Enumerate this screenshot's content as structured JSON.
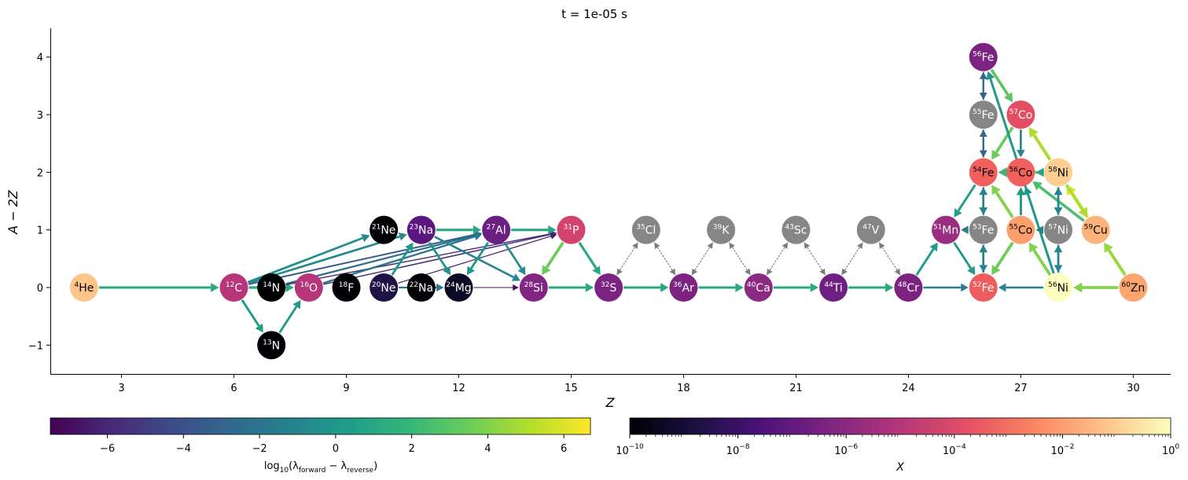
{
  "chart_data": {
    "type": "network",
    "title": "t = 1e-05 s",
    "xlabel": "Z",
    "ylabel": "A − 2Z",
    "xlim": [
      1.1,
      31.0
    ],
    "ylim": [
      -1.5,
      4.5
    ],
    "xticks": [
      3,
      6,
      9,
      12,
      15,
      18,
      21,
      24,
      27,
      30
    ],
    "yticks": [
      -1,
      0,
      1,
      2,
      3,
      4
    ],
    "grid": false,
    "nodes": [
      {
        "id": "he4",
        "a": "4",
        "el": "He",
        "z": 2,
        "n": 0,
        "color": "#fdc58b",
        "text": "#000000"
      },
      {
        "id": "c12",
        "a": "12",
        "el": "C",
        "z": 6,
        "n": 0,
        "color": "#b5367a",
        "text": "#ffffff"
      },
      {
        "id": "n13",
        "a": "13",
        "el": "N",
        "z": 7,
        "n": -1,
        "color": "#000004",
        "text": "#ffffff"
      },
      {
        "id": "n14",
        "a": "14",
        "el": "N",
        "z": 7,
        "n": 0,
        "color": "#000004",
        "text": "#ffffff"
      },
      {
        "id": "o16",
        "a": "16",
        "el": "O",
        "z": 8,
        "n": 0,
        "color": "#b5367a",
        "text": "#ffffff"
      },
      {
        "id": "f18",
        "a": "18",
        "el": "F",
        "z": 9,
        "n": 0,
        "color": "#000004",
        "text": "#ffffff"
      },
      {
        "id": "ne20",
        "a": "20",
        "el": "Ne",
        "z": 10,
        "n": 0,
        "color": "#1e1246",
        "text": "#ffffff"
      },
      {
        "id": "ne21",
        "a": "21",
        "el": "Ne",
        "z": 10,
        "n": 1,
        "color": "#000004",
        "text": "#ffffff"
      },
      {
        "id": "na22",
        "a": "22",
        "el": "Na",
        "z": 11,
        "n": 0,
        "color": "#000004",
        "text": "#ffffff"
      },
      {
        "id": "na23",
        "a": "23",
        "el": "Na",
        "z": 11,
        "n": 1,
        "color": "#5a177f",
        "text": "#ffffff"
      },
      {
        "id": "mg24",
        "a": "24",
        "el": "Mg",
        "z": 12,
        "n": 0,
        "color": "#0d0a26",
        "text": "#ffffff"
      },
      {
        "id": "al27",
        "a": "27",
        "el": "Al",
        "z": 13,
        "n": 1,
        "color": "#6b1f80",
        "text": "#ffffff"
      },
      {
        "id": "si28",
        "a": "28",
        "el": "Si",
        "z": 14,
        "n": 0,
        "color": "#832681",
        "text": "#ffffff"
      },
      {
        "id": "p31",
        "a": "31",
        "el": "P",
        "z": 15,
        "n": 1,
        "color": "#d3436e",
        "text": "#ffffff"
      },
      {
        "id": "s32",
        "a": "32",
        "el": "S",
        "z": 16,
        "n": 0,
        "color": "#7c2382",
        "text": "#ffffff"
      },
      {
        "id": "cl35",
        "a": "35",
        "el": "Cl",
        "z": 17,
        "n": 1,
        "color": "#868686",
        "text": "#ffffff"
      },
      {
        "id": "ar36",
        "a": "36",
        "el": "Ar",
        "z": 18,
        "n": 0,
        "color": "#7c2382",
        "text": "#ffffff"
      },
      {
        "id": "k39",
        "a": "39",
        "el": "K",
        "z": 19,
        "n": 1,
        "color": "#868686",
        "text": "#ffffff"
      },
      {
        "id": "ca40",
        "a": "40",
        "el": "Ca",
        "z": 20,
        "n": 0,
        "color": "#8c2981",
        "text": "#ffffff"
      },
      {
        "id": "sc43",
        "a": "43",
        "el": "Sc",
        "z": 21,
        "n": 1,
        "color": "#868686",
        "text": "#ffffff"
      },
      {
        "id": "ti44",
        "a": "44",
        "el": "Ti",
        "z": 22,
        "n": 0,
        "color": "#6e1f81",
        "text": "#ffffff"
      },
      {
        "id": "v47",
        "a": "47",
        "el": "V",
        "z": 23,
        "n": 1,
        "color": "#868686",
        "text": "#ffffff"
      },
      {
        "id": "cr48",
        "a": "48",
        "el": "Cr",
        "z": 24,
        "n": 0,
        "color": "#7c2382",
        "text": "#ffffff"
      },
      {
        "id": "mn51",
        "a": "51",
        "el": "Mn",
        "z": 25,
        "n": 1,
        "color": "#9a2e80",
        "text": "#ffffff"
      },
      {
        "id": "fe52",
        "a": "52",
        "el": "Fe",
        "z": 26,
        "n": 0,
        "color": "#ef5c5e",
        "text": "#ffffff"
      },
      {
        "id": "fe53",
        "a": "53",
        "el": "Fe",
        "z": 26,
        "n": 1,
        "color": "#868686",
        "text": "#ffffff"
      },
      {
        "id": "fe54",
        "a": "54",
        "el": "Fe",
        "z": 26,
        "n": 2,
        "color": "#f1605d",
        "text": "#000000"
      },
      {
        "id": "fe55",
        "a": "55",
        "el": "Fe",
        "z": 26,
        "n": 3,
        "color": "#868686",
        "text": "#ffffff"
      },
      {
        "id": "fe56",
        "a": "56",
        "el": "Fe",
        "z": 26,
        "n": 4,
        "color": "#7c2382",
        "text": "#ffffff"
      },
      {
        "id": "co55",
        "a": "55",
        "el": "Co",
        "z": 27,
        "n": 1,
        "color": "#fc9f6c",
        "text": "#000000"
      },
      {
        "id": "co56",
        "a": "56",
        "el": "Co",
        "z": 27,
        "n": 2,
        "color": "#f1605d",
        "text": "#000000"
      },
      {
        "id": "co57",
        "a": "57",
        "el": "Co",
        "z": 27,
        "n": 3,
        "color": "#e34e65",
        "text": "#ffffff"
      },
      {
        "id": "ni56",
        "a": "56",
        "el": "Ni",
        "z": 28,
        "n": 0,
        "color": "#fcfdbf",
        "text": "#000000"
      },
      {
        "id": "ni57",
        "a": "57",
        "el": "Ni",
        "z": 28,
        "n": 1,
        "color": "#868686",
        "text": "#ffffff"
      },
      {
        "id": "ni58",
        "a": "58",
        "el": "Ni",
        "z": 28,
        "n": 2,
        "color": "#fecf92",
        "text": "#000000"
      },
      {
        "id": "cu59",
        "a": "59",
        "el": "Cu",
        "z": 29,
        "n": 1,
        "color": "#fdb47a",
        "text": "#000000"
      },
      {
        "id": "zn60",
        "a": "60",
        "el": "Zn",
        "z": 30,
        "n": 0,
        "color": "#fba56f",
        "text": "#000000"
      }
    ],
    "edges": [
      {
        "from": "he4",
        "to": "c12",
        "v": 1.0
      },
      {
        "from": "c12",
        "to": "o16",
        "v": 1.2
      },
      {
        "from": "c12",
        "to": "n13",
        "v": 0.3
      },
      {
        "from": "n13",
        "to": "o16",
        "v": 0.2
      },
      {
        "from": "c12",
        "to": "ne21",
        "v": -0.6
      },
      {
        "from": "c12",
        "to": "na23",
        "v": -0.8
      },
      {
        "from": "c12",
        "to": "al27",
        "v": -3.5
      },
      {
        "from": "n14",
        "to": "al27",
        "v": -2.5
      },
      {
        "from": "n14",
        "to": "p31",
        "v": -6.0
      },
      {
        "from": "o16",
        "to": "p31",
        "v": -5.5
      },
      {
        "from": "o16",
        "to": "al27",
        "v": -2.0
      },
      {
        "from": "ne20",
        "to": "na23",
        "v": 0.3
      },
      {
        "from": "ne20",
        "to": "p31",
        "v": -6.5
      },
      {
        "from": "ne20",
        "to": "mg24",
        "v": -2.0
      },
      {
        "from": "na23",
        "to": "al27",
        "v": 1.0
      },
      {
        "from": "na23",
        "to": "mg24",
        "v": -0.3
      },
      {
        "from": "na23",
        "to": "si28",
        "v": -1.0
      },
      {
        "from": "al27",
        "to": "mg24",
        "v": 0.0
      },
      {
        "from": "al27",
        "to": "p31",
        "v": 1.0
      },
      {
        "from": "al27",
        "to": "si28",
        "v": -0.5
      },
      {
        "from": "mg24",
        "to": "si28",
        "v": -7.0
      },
      {
        "from": "p31",
        "to": "si28",
        "v": 3.5
      },
      {
        "from": "p31",
        "to": "s32",
        "v": 1.0
      },
      {
        "from": "si28",
        "to": "s32",
        "v": 1.0
      },
      {
        "from": "s32",
        "to": "ar36",
        "v": 1.0
      },
      {
        "from": "ar36",
        "to": "ca40",
        "v": 1.0
      },
      {
        "from": "ca40",
        "to": "ti44",
        "v": 1.0
      },
      {
        "from": "ti44",
        "to": "cr48",
        "v": 1.0
      },
      {
        "from": "cr48",
        "to": "fe52",
        "v": -1.5
      },
      {
        "from": "cr48",
        "to": "mn51",
        "v": 0.3
      },
      {
        "from": "mn51",
        "to": "fe52",
        "v": 0.0
      },
      {
        "from": "fe54",
        "to": "mn51",
        "v": 0.5
      },
      {
        "from": "fe53",
        "to": "mn51",
        "v": -1.5
      },
      {
        "from": "ni56",
        "to": "fe52",
        "v": -1.0
      },
      {
        "from": "zn60",
        "to": "ni56",
        "v": 4.0
      },
      {
        "from": "zn60",
        "to": "cu59",
        "v": 4.5
      },
      {
        "from": "cu59",
        "to": "ni58",
        "v": 6.0
      },
      {
        "from": "cu59",
        "to": "co56",
        "v": 2.5
      },
      {
        "from": "ni58",
        "to": "cu59",
        "v": 5.0
      },
      {
        "from": "ni58",
        "to": "co57",
        "v": 5.0
      },
      {
        "from": "ni58",
        "to": "fe54",
        "v": 3.5
      },
      {
        "from": "ni58",
        "to": "co56",
        "v": 0.8
      },
      {
        "from": "co57",
        "to": "fe54",
        "v": 3.5
      },
      {
        "from": "co57",
        "to": "co56",
        "v": -1.0
      },
      {
        "from": "co56",
        "to": "fe54",
        "v": 2.0
      },
      {
        "from": "co56",
        "to": "fe56",
        "v": -0.5
      },
      {
        "from": "co55",
        "to": "fe52",
        "v": 3.5
      },
      {
        "from": "co55",
        "to": "fe54",
        "v": 4.0
      },
      {
        "from": "co55",
        "to": "co56",
        "v": -1.0
      },
      {
        "from": "ni56",
        "to": "co55",
        "v": 4.0
      },
      {
        "from": "ni56",
        "to": "fe56",
        "v": 0.0
      },
      {
        "from": "ni56",
        "to": "co56",
        "v": 0.0
      },
      {
        "from": "fe55",
        "to": "fe56",
        "v": -3.0
      },
      {
        "from": "fe56",
        "to": "fe55",
        "v": -3.0
      },
      {
        "from": "fe55",
        "to": "fe54",
        "v": -3.0
      },
      {
        "from": "fe54",
        "to": "fe55",
        "v": -3.0
      },
      {
        "from": "fe53",
        "to": "fe54",
        "v": -1.0
      },
      {
        "from": "fe54",
        "to": "fe53",
        "v": -1.0
      },
      {
        "from": "fe53",
        "to": "fe52",
        "v": -1.0
      },
      {
        "from": "fe52",
        "to": "fe53",
        "v": -1.0
      },
      {
        "from": "ni57",
        "to": "ni58",
        "v": -1.0
      },
      {
        "from": "ni58",
        "to": "ni57",
        "v": -1.0
      },
      {
        "from": "ni57",
        "to": "ni56",
        "v": -1.0
      },
      {
        "from": "ni56",
        "to": "ni57",
        "v": -1.0
      },
      {
        "from": "ni57",
        "to": "co55",
        "v": -1.0
      },
      {
        "from": "fe56",
        "to": "co57",
        "v": 3.0
      },
      {
        "from": "co55",
        "to": "co56",
        "v": 0.0
      }
    ],
    "weak_pairs": [
      [
        "s32",
        "cl35"
      ],
      [
        "cl35",
        "ar36"
      ],
      [
        "ar36",
        "k39"
      ],
      [
        "k39",
        "ca40"
      ],
      [
        "ca40",
        "sc43"
      ],
      [
        "sc43",
        "ti44"
      ],
      [
        "ti44",
        "v47"
      ],
      [
        "v47",
        "cr48"
      ]
    ],
    "colorbar_rate": {
      "label": "log₁₀(λ_forward − λ_reverse)",
      "label_main": "log",
      "label_sub": "10",
      "label_inner": "(λ",
      "label_sub2": "forward",
      "label_mid": " − λ",
      "label_sub3": "reverse",
      "label_end": ")",
      "cmap": "viridis",
      "range": [
        -7.5,
        6.7
      ],
      "ticks": [
        -6,
        -4,
        -2,
        0,
        2,
        4,
        6
      ],
      "tick_labels": [
        "−6",
        "−4",
        "−2",
        "0",
        "2",
        "4",
        "6"
      ]
    },
    "colorbar_abundance": {
      "label": "X",
      "cmap": "magma",
      "scale": "log",
      "range_exp": [
        -10,
        0
      ],
      "ticks_exp": [
        -10,
        -8,
        -6,
        -4,
        -2,
        0
      ],
      "tick_base": "10"
    }
  }
}
